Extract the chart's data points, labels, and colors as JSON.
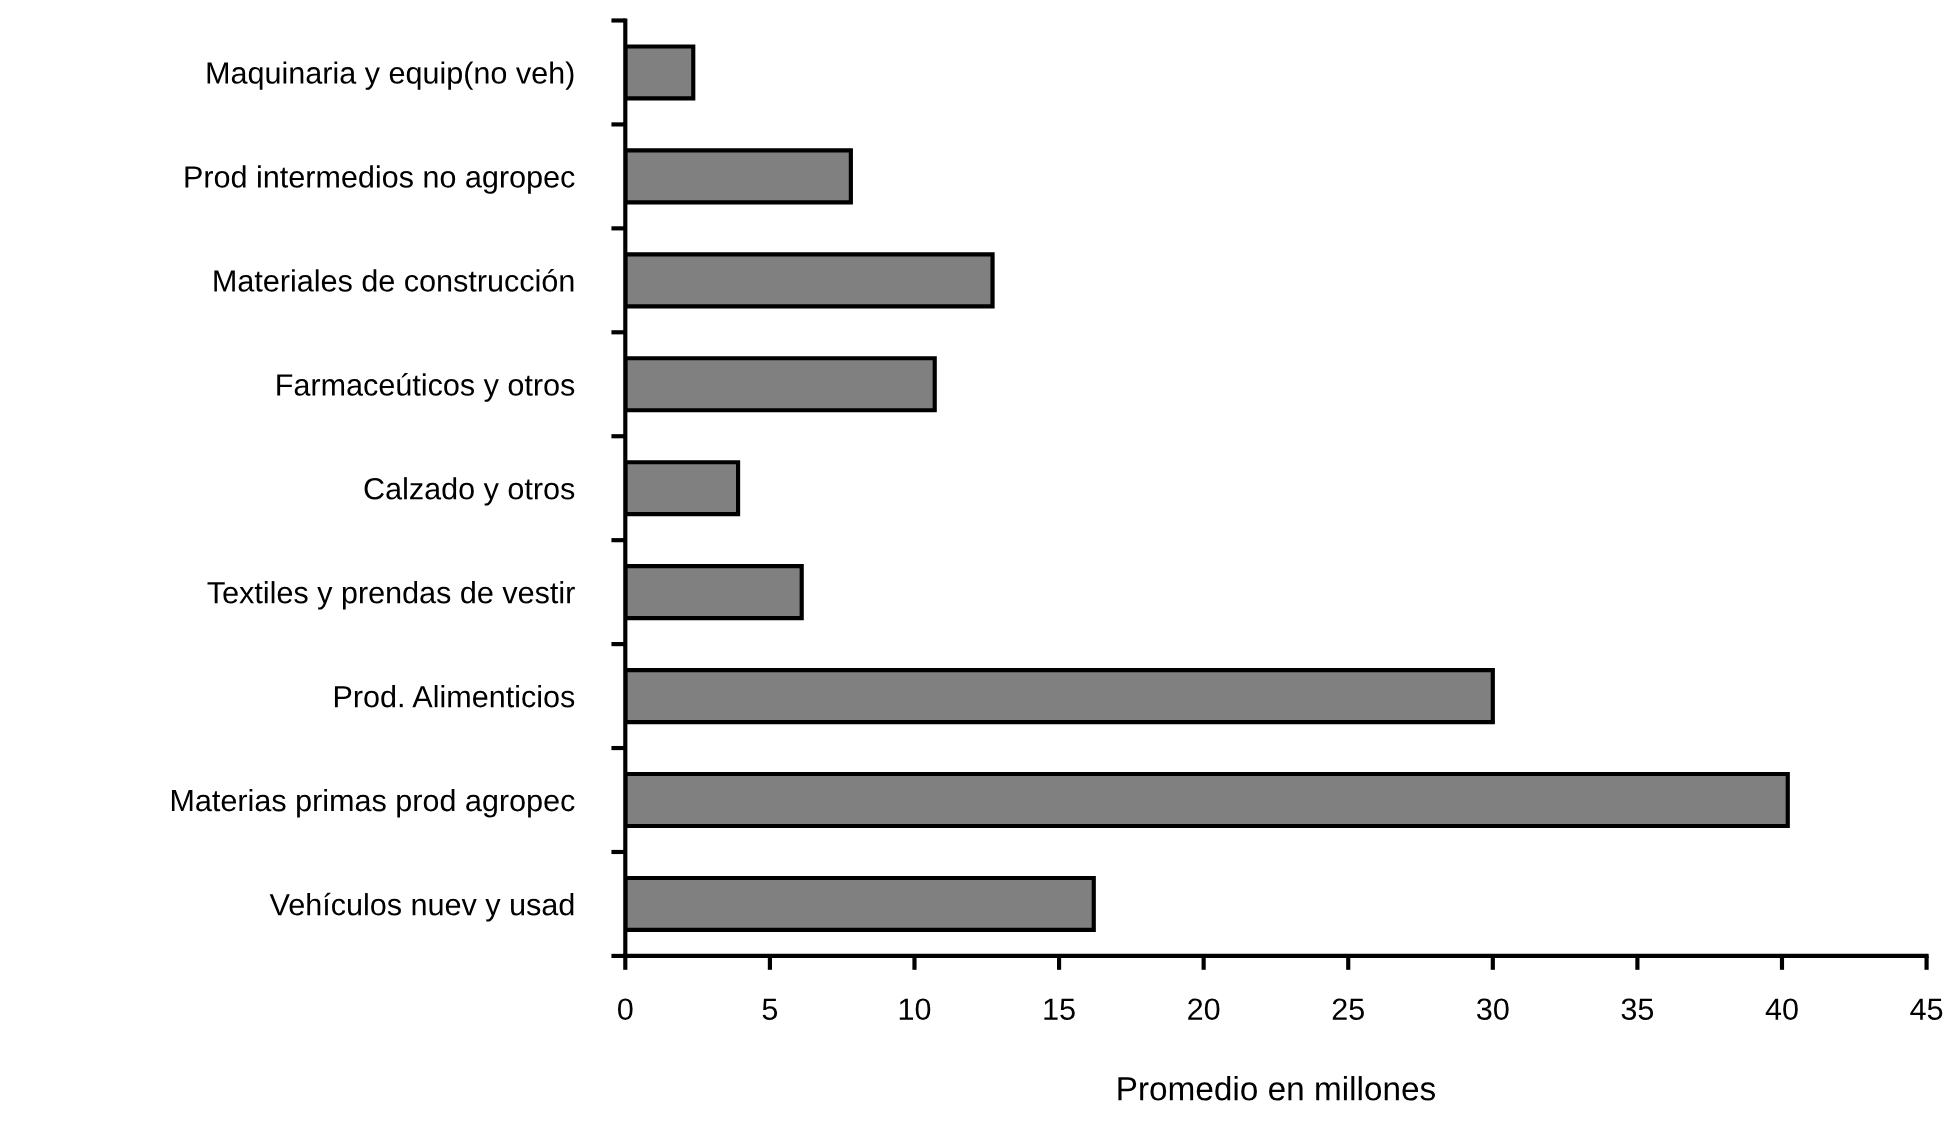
{
  "chart_data": {
    "type": "bar",
    "orientation": "horizontal",
    "xlabel": "Promedio en millones",
    "categories": [
      "Maquinaria y equip(no veh)",
      "Prod intermedios no agropec",
      "Materiales de construcción",
      "Farmaceúticos y otros",
      "Calzado y otros",
      "Textiles y prendas de vestir",
      "Prod. Alimenticios",
      "Materias primas prod agropec",
      "Vehículos nuev y usad"
    ],
    "values": [
      2.35,
      7.8,
      12.7,
      10.7,
      3.9,
      6.1,
      30.0,
      40.2,
      16.2
    ],
    "color": "#808080",
    "xlim": [
      0,
      45
    ],
    "xticks": [
      0,
      5,
      10,
      15,
      20,
      25,
      30,
      35,
      40,
      45
    ],
    "grid": false,
    "legend": false
  }
}
